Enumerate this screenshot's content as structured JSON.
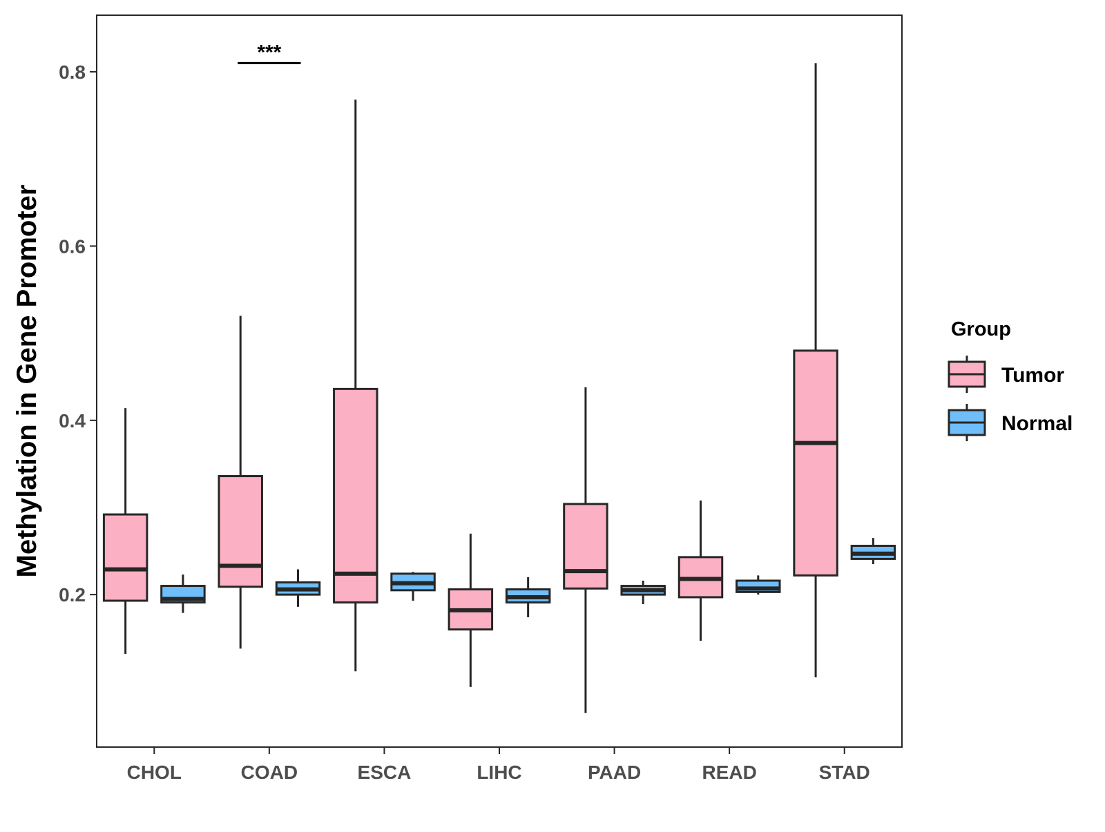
{
  "chart_data": {
    "type": "boxplot",
    "title": "",
    "xlabel": "",
    "ylabel": "Methylation in Gene Promoter",
    "ylim": [
      0.025,
      0.865
    ],
    "yticks": [
      0.2,
      0.4,
      0.6,
      0.8
    ],
    "ytick_labels": [
      "0.2",
      "0.4",
      "0.6",
      "0.8"
    ],
    "grid": false,
    "legend_position": "right",
    "categories": [
      "CHOL",
      "COAD",
      "ESCA",
      "LIHC",
      "PAAD",
      "READ",
      "STAD"
    ],
    "legend": {
      "title": "Group",
      "entries": [
        {
          "key": "Tumor",
          "label": "Tumor"
        },
        {
          "key": "Normal",
          "label": "Normal"
        }
      ]
    },
    "colors": {
      "Tumor": "#fbb0c3",
      "Normal": "#6fbdf9",
      "outline": "#262626"
    },
    "series": [
      {
        "name": "Tumor",
        "boxes": [
          {
            "category": "CHOL",
            "whisker_low": 0.132,
            "q1": 0.193,
            "median": 0.229,
            "q3": 0.292,
            "whisker_high": 0.414
          },
          {
            "category": "COAD",
            "whisker_low": 0.138,
            "q1": 0.209,
            "median": 0.233,
            "q3": 0.336,
            "whisker_high": 0.52
          },
          {
            "category": "ESCA",
            "whisker_low": 0.112,
            "q1": 0.191,
            "median": 0.224,
            "q3": 0.436,
            "whisker_high": 0.768
          },
          {
            "category": "LIHC",
            "whisker_low": 0.094,
            "q1": 0.16,
            "median": 0.182,
            "q3": 0.206,
            "whisker_high": 0.27
          },
          {
            "category": "PAAD",
            "whisker_low": 0.064,
            "q1": 0.207,
            "median": 0.227,
            "q3": 0.304,
            "whisker_high": 0.438
          },
          {
            "category": "READ",
            "whisker_low": 0.147,
            "q1": 0.197,
            "median": 0.218,
            "q3": 0.243,
            "whisker_high": 0.308
          },
          {
            "category": "STAD",
            "whisker_low": 0.105,
            "q1": 0.222,
            "median": 0.374,
            "q3": 0.48,
            "whisker_high": 0.81
          }
        ]
      },
      {
        "name": "Normal",
        "boxes": [
          {
            "category": "CHOL",
            "whisker_low": 0.179,
            "q1": 0.191,
            "median": 0.195,
            "q3": 0.21,
            "whisker_high": 0.223
          },
          {
            "category": "COAD",
            "whisker_low": 0.186,
            "q1": 0.2,
            "median": 0.206,
            "q3": 0.214,
            "whisker_high": 0.229
          },
          {
            "category": "ESCA",
            "whisker_low": 0.193,
            "q1": 0.205,
            "median": 0.213,
            "q3": 0.224,
            "whisker_high": 0.226
          },
          {
            "category": "LIHC",
            "whisker_low": 0.174,
            "q1": 0.191,
            "median": 0.197,
            "q3": 0.206,
            "whisker_high": 0.22
          },
          {
            "category": "PAAD",
            "whisker_low": 0.189,
            "q1": 0.2,
            "median": 0.205,
            "q3": 0.21,
            "whisker_high": 0.216
          },
          {
            "category": "READ",
            "whisker_low": 0.2,
            "q1": 0.203,
            "median": 0.207,
            "q3": 0.216,
            "whisker_high": 0.222
          },
          {
            "category": "STAD",
            "whisker_low": 0.235,
            "q1": 0.241,
            "median": 0.247,
            "q3": 0.256,
            "whisker_high": 0.265
          }
        ]
      }
    ],
    "annotations": [
      {
        "category": "COAD",
        "label": "***",
        "y": 0.81
      }
    ]
  }
}
